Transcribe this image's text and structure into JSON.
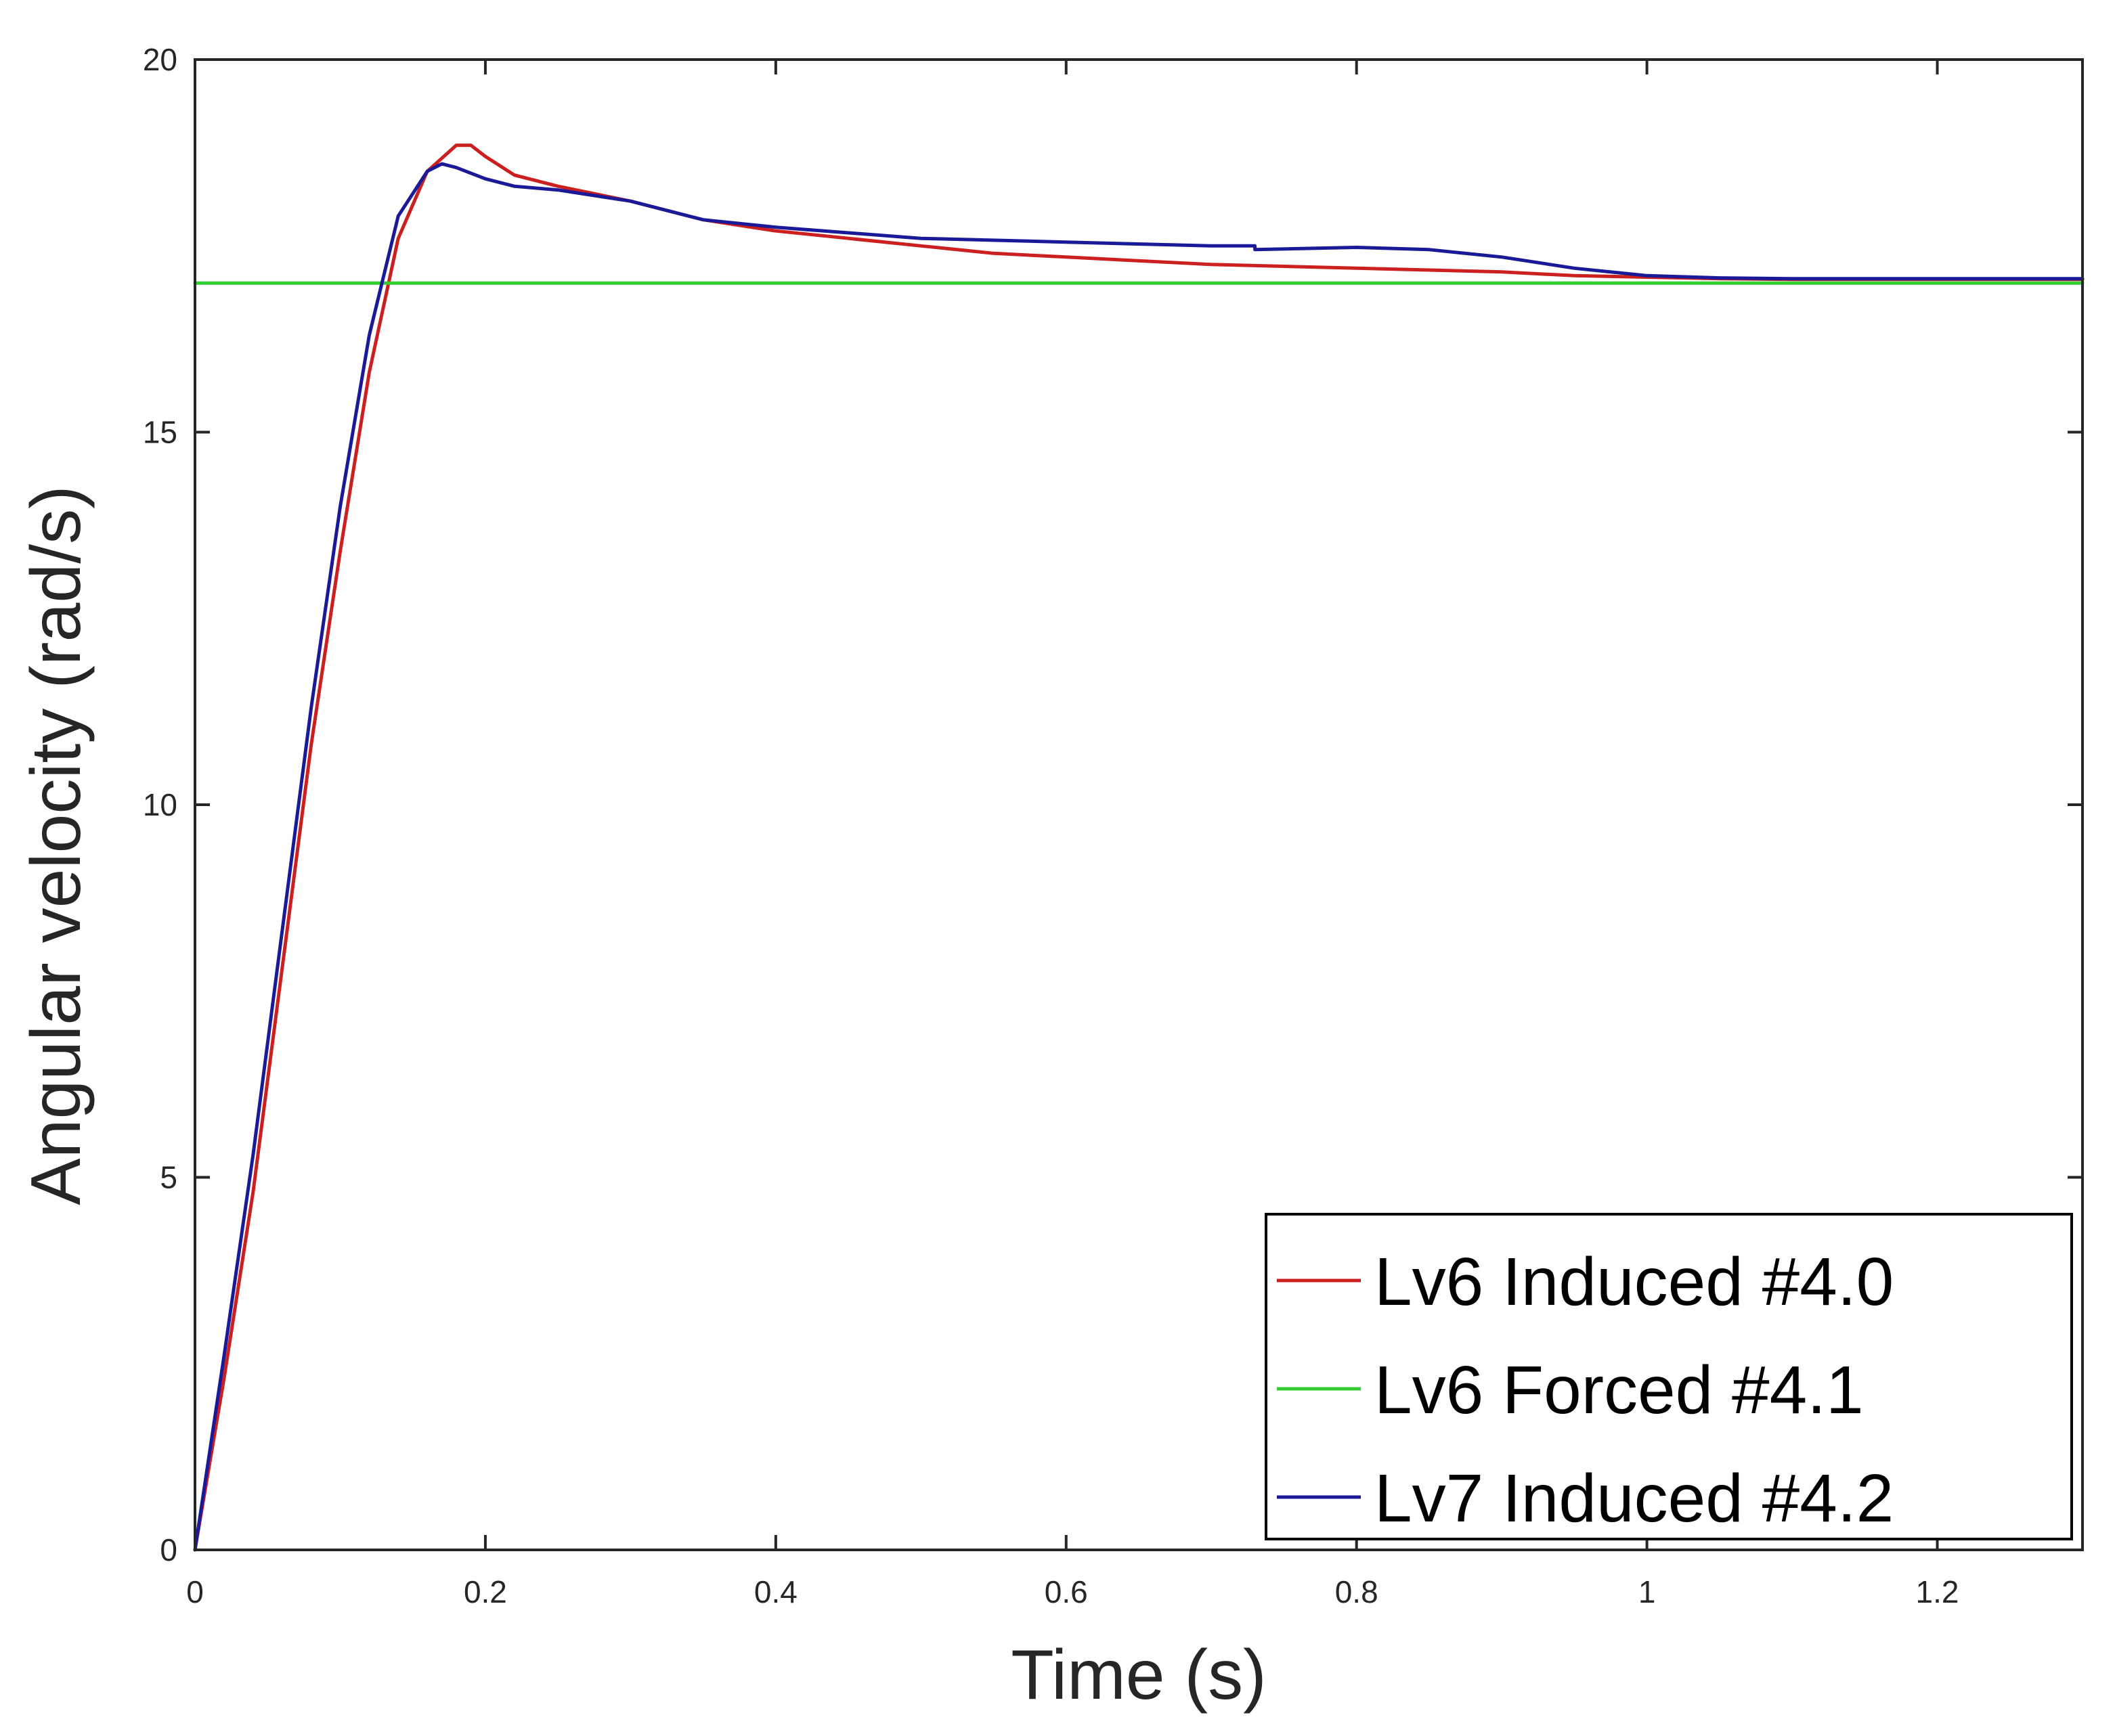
{
  "chart_data": {
    "type": "line",
    "title": "",
    "xlabel": "Time (s)",
    "ylabel": "Angular velocity (rad/s)",
    "xlim": [
      0,
      1.3
    ],
    "ylim": [
      0,
      20
    ],
    "xticks": [
      0,
      0.2,
      0.4,
      0.6,
      0.8,
      1,
      1.2
    ],
    "xtick_labels": [
      "0",
      "0.2",
      "0.4",
      "0.6",
      "0.8",
      "1",
      "1.2"
    ],
    "yticks": [
      0,
      5,
      10,
      15,
      20
    ],
    "ytick_labels": [
      "0",
      "5",
      "10",
      "15",
      "20"
    ],
    "grid": false,
    "legend_position": "bottom-right",
    "series": [
      {
        "name": "Lv6 Induced #4.0",
        "color": "#cc1f1f",
        "x": [
          0,
          0.02,
          0.04,
          0.06,
          0.08,
          0.1,
          0.12,
          0.14,
          0.16,
          0.18,
          0.19,
          0.2,
          0.22,
          0.25,
          0.3,
          0.35,
          0.4,
          0.45,
          0.5,
          0.55,
          0.6,
          0.7,
          0.8,
          0.9,
          0.95,
          1.0,
          1.05,
          1.1,
          1.2,
          1.3
        ],
        "y": [
          0,
          2.3,
          4.8,
          7.8,
          10.8,
          13.4,
          15.8,
          17.6,
          18.5,
          18.85,
          18.85,
          18.7,
          18.45,
          18.3,
          18.1,
          17.85,
          17.7,
          17.6,
          17.5,
          17.4,
          17.35,
          17.25,
          17.2,
          17.15,
          17.1,
          17.08,
          17.06,
          17.05,
          17.05,
          17.05
        ]
      },
      {
        "name": "Lv6 Forced #4.1",
        "color": "#33cc33",
        "x": [
          0,
          1.3
        ],
        "y": [
          17,
          17
        ]
      },
      {
        "name": "Lv7 Induced #4.2",
        "color": "#1a1a99",
        "x": [
          0,
          0.02,
          0.04,
          0.06,
          0.08,
          0.1,
          0.12,
          0.14,
          0.16,
          0.17,
          0.18,
          0.2,
          0.22,
          0.25,
          0.3,
          0.35,
          0.4,
          0.5,
          0.6,
          0.7,
          0.73,
          0.73,
          0.8,
          0.85,
          0.9,
          0.95,
          1.0,
          1.05,
          1.1,
          1.2,
          1.3
        ],
        "y": [
          0,
          2.6,
          5.3,
          8.3,
          11.3,
          14.0,
          16.3,
          17.9,
          18.5,
          18.6,
          18.55,
          18.4,
          18.3,
          18.25,
          18.1,
          17.85,
          17.75,
          17.6,
          17.55,
          17.5,
          17.5,
          17.45,
          17.48,
          17.45,
          17.35,
          17.2,
          17.1,
          17.07,
          17.06,
          17.06,
          17.06
        ]
      }
    ]
  }
}
